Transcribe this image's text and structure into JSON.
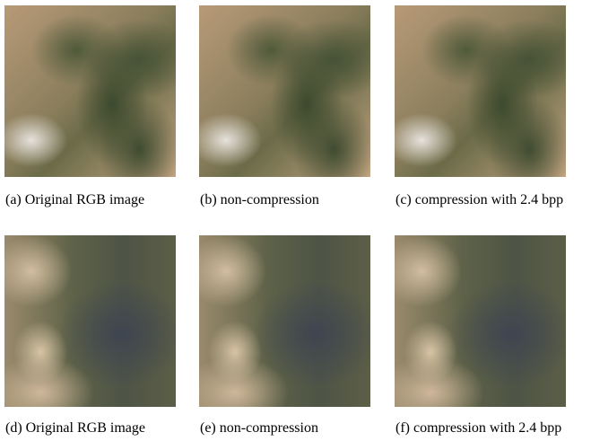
{
  "figure": {
    "panels": [
      {
        "caption": "(a) Original RGB image"
      },
      {
        "caption": "(b) non-compression"
      },
      {
        "caption": "(c) compression with 2.4 bpp"
      },
      {
        "caption": "(d) Original RGB image"
      },
      {
        "caption": "(e) non-compression"
      },
      {
        "caption": "(f) compression with 2.4 bpp"
      }
    ]
  }
}
